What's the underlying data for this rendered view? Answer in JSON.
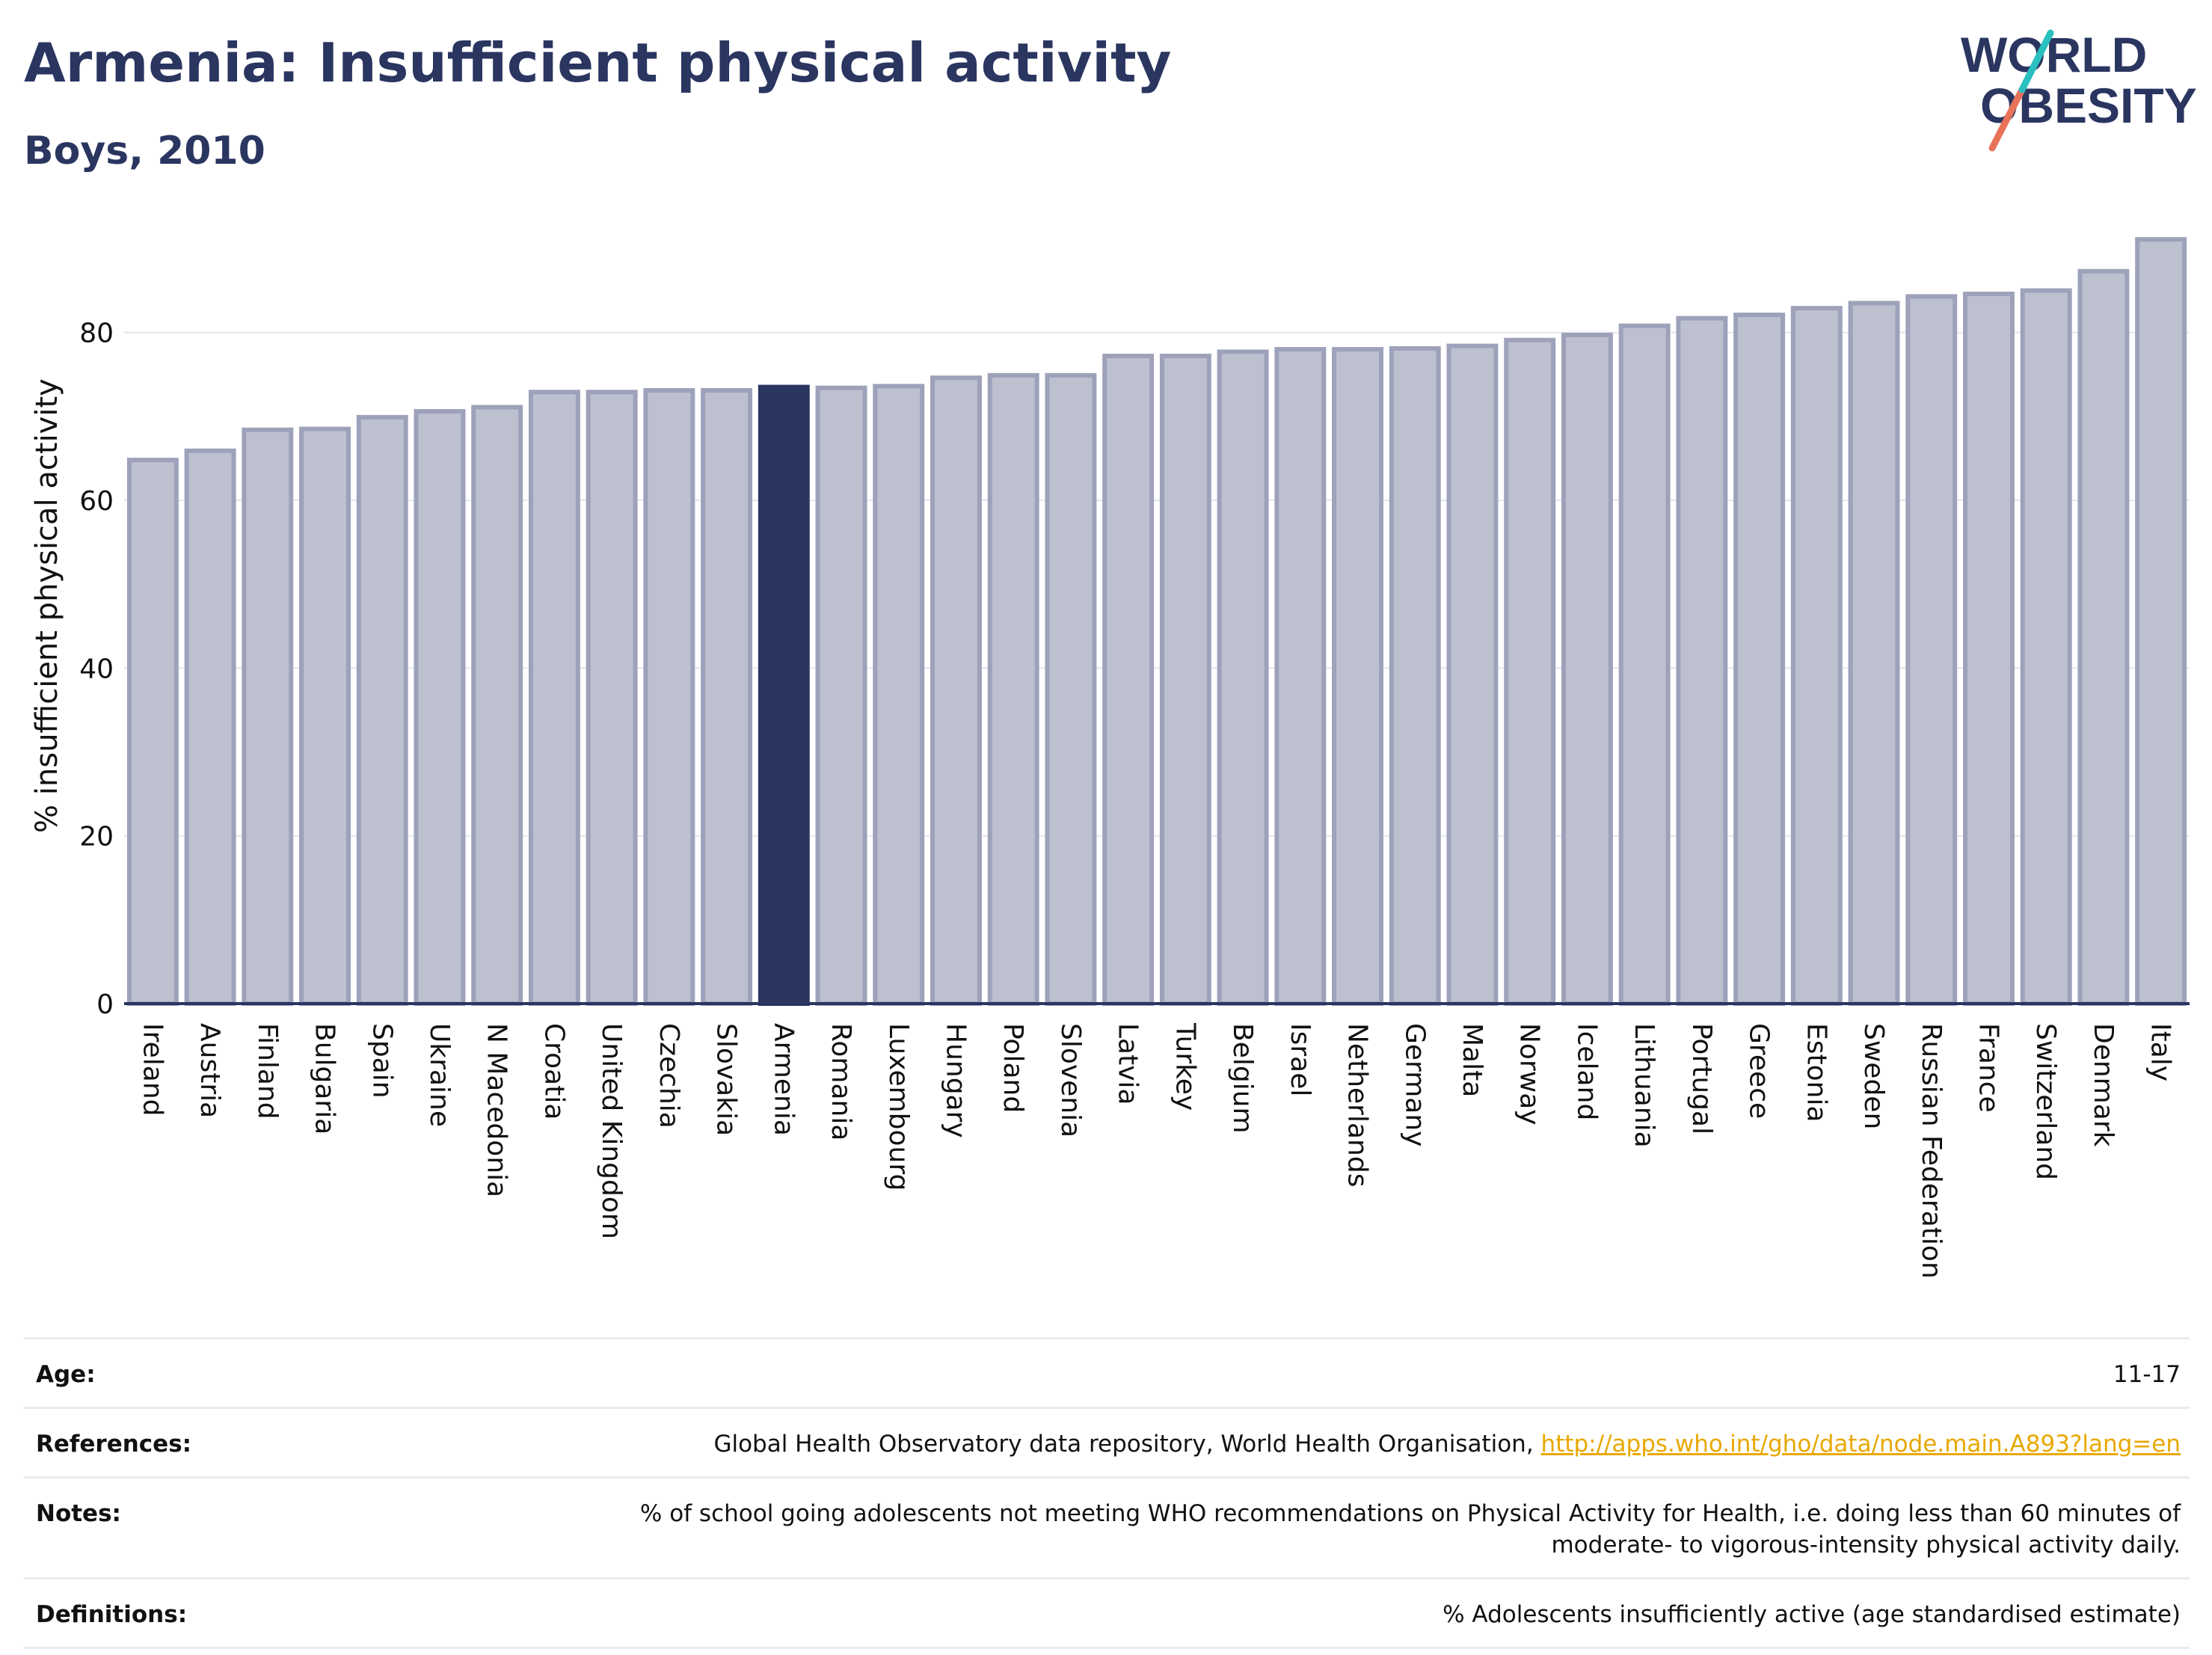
{
  "header": {
    "title": "Armenia: Insufficient physical activity",
    "subtitle": "Boys, 2010"
  },
  "logo": {
    "line1": "WORLD",
    "line2": "OBESITY",
    "colors": {
      "text": "#2a3560",
      "teal": "#2bbfbf",
      "coral": "#e8735a"
    }
  },
  "chart_data": {
    "type": "bar",
    "ylabel": "% insufficient physical activity",
    "ylim": [
      0,
      92
    ],
    "yticks": [
      0,
      20,
      40,
      60,
      80
    ],
    "grid": true,
    "highlight": "Armenia",
    "colors": {
      "bar": "#bdc0cf",
      "bar_edge": "#9da1ba",
      "highlight": "#2a3560",
      "axis": "#2a3560",
      "grid": "#e5e5ec"
    },
    "categories": [
      "Ireland",
      "Austria",
      "Finland",
      "Bulgaria",
      "Spain",
      "Ukraine",
      "N Macedonia",
      "Croatia",
      "United Kingdom",
      "Czechia",
      "Slovakia",
      "Armenia",
      "Romania",
      "Luxembourg",
      "Hungary",
      "Poland",
      "Slovenia",
      "Latvia",
      "Turkey",
      "Belgium",
      "Israel",
      "Netherlands",
      "Germany",
      "Malta",
      "Norway",
      "Iceland",
      "Lithuania",
      "Portugal",
      "Greece",
      "Estonia",
      "Sweden",
      "Russian Federation",
      "France",
      "Switzerland",
      "Denmark",
      "Italy"
    ],
    "values": [
      64.8,
      65.9,
      68.4,
      68.5,
      69.9,
      70.6,
      71.1,
      72.9,
      72.9,
      73.1,
      73.1,
      73.5,
      73.4,
      73.6,
      74.6,
      74.9,
      74.9,
      77.2,
      77.2,
      77.7,
      78.0,
      78.0,
      78.1,
      78.4,
      79.1,
      79.7,
      80.8,
      81.7,
      82.1,
      82.9,
      83.5,
      84.3,
      84.6,
      85.0,
      87.3,
      91.1
    ]
  },
  "info": {
    "age_label": "Age:",
    "age_value": "11-17",
    "references_label": "References:",
    "references_text": "Global Health Observatory data repository, World Health Organisation, ",
    "references_link": "http://apps.who.int/gho/data/node.main.A893?lang=en",
    "notes_label": "Notes:",
    "notes_value": "% of school going adolescents not meeting WHO recommendations on Physical Activity for Health, i.e. doing less than 60 minutes of moderate- to vigorous-intensity physical activity daily.",
    "definitions_label": "Definitions:",
    "definitions_value": "% Adolescents insufficiently active (age standardised estimate)"
  }
}
